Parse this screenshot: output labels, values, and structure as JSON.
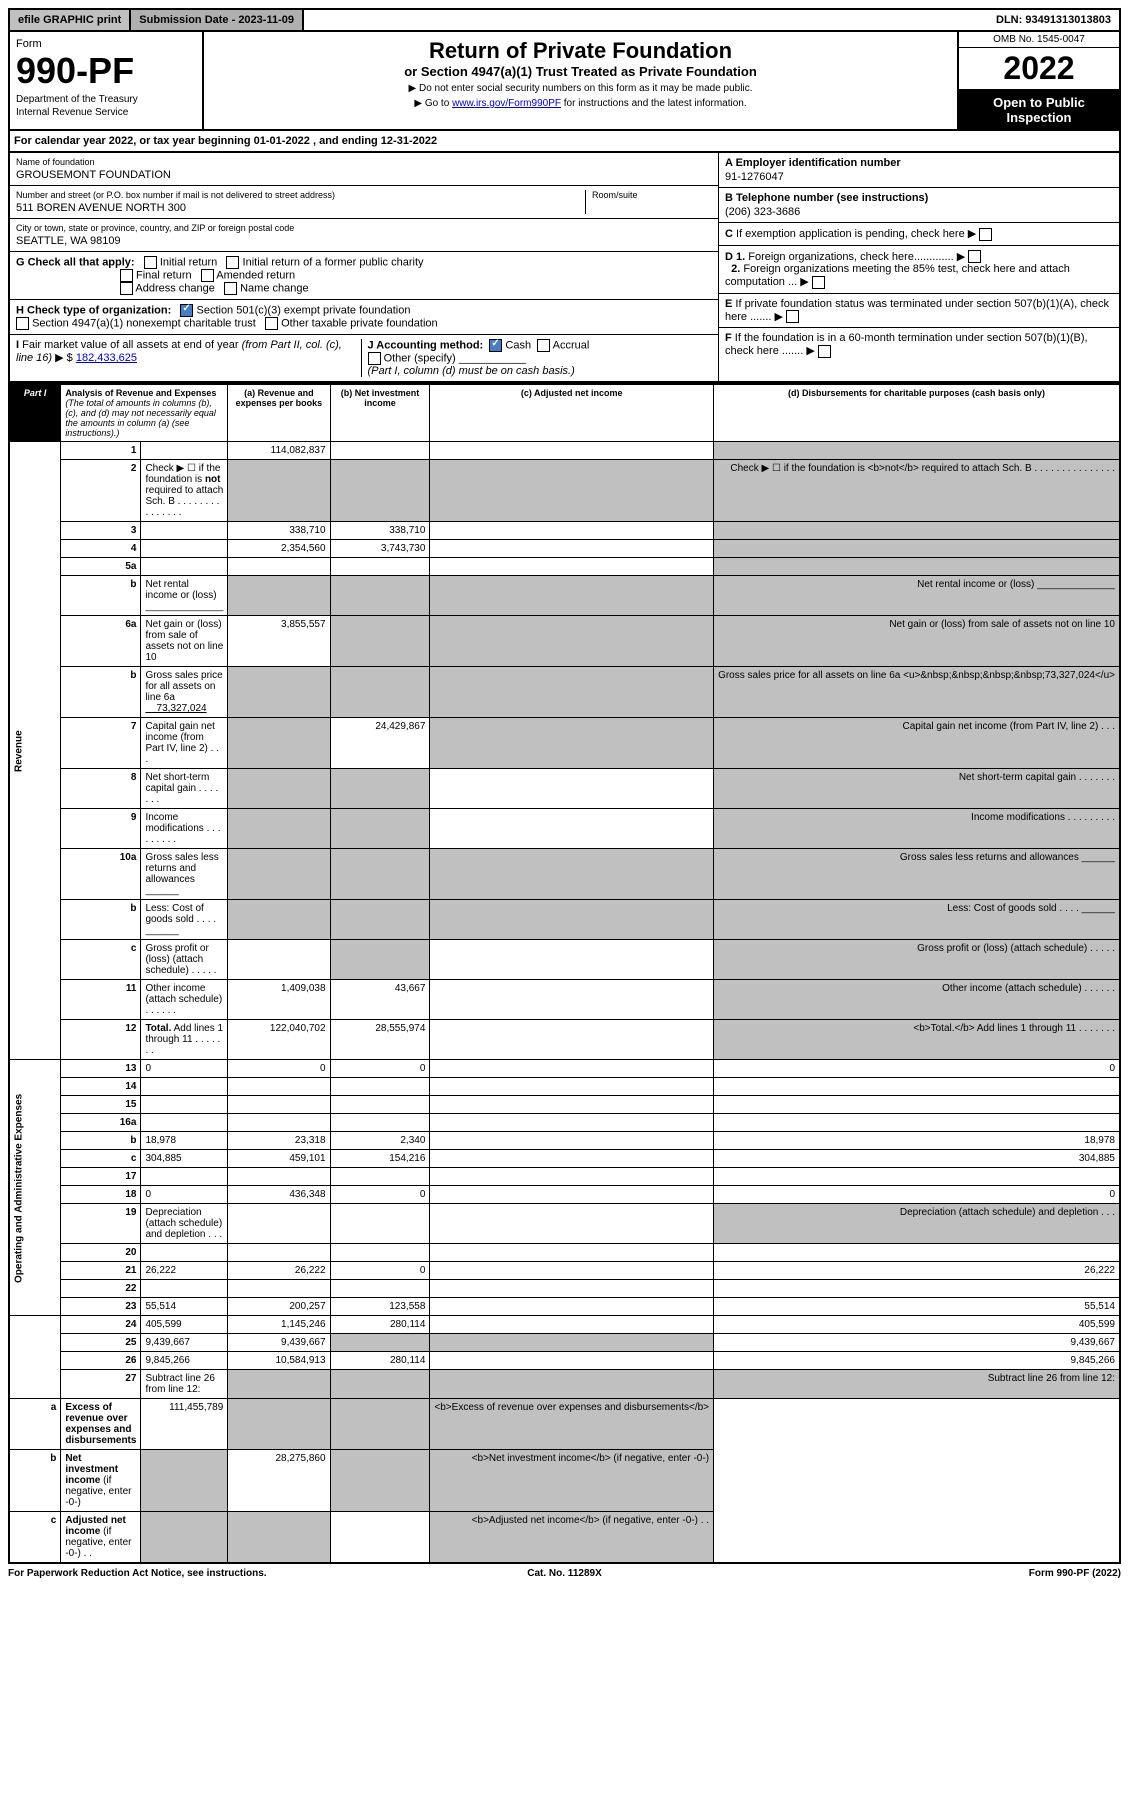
{
  "top": {
    "efile": "efile GRAPHIC print",
    "submission": "Submission Date - 2023-11-09",
    "dln": "DLN: 93491313013803"
  },
  "header": {
    "form_label": "Form",
    "form_no": "990-PF",
    "dept": "Department of the Treasury",
    "irs": "Internal Revenue Service",
    "title": "Return of Private Foundation",
    "subtitle": "or Section 4947(a)(1) Trust Treated as Private Foundation",
    "notice1": "▶ Do not enter social security numbers on this form as it may be made public.",
    "notice2": "▶ Go to ",
    "link": "www.irs.gov/Form990PF",
    "notice2b": " for instructions and the latest information.",
    "omb": "OMB No. 1545-0047",
    "year": "2022",
    "inspection": "Open to Public Inspection"
  },
  "calyear": "For calendar year 2022, or tax year beginning 01-01-2022                           , and ending 12-31-2022",
  "id": {
    "name_lbl": "Name of foundation",
    "name": "GROUSEMONT FOUNDATION",
    "addr_lbl": "Number and street (or P.O. box number if mail is not delivered to street address)",
    "addr": "511 BOREN AVENUE NORTH 300",
    "room_lbl": "Room/suite",
    "city_lbl": "City or town, state or province, country, and ZIP or foreign postal code",
    "city": "SEATTLE, WA  98109",
    "ein_lbl": "A Employer identification number",
    "ein": "91-1276047",
    "tel_lbl": "B Telephone number (see instructions)",
    "tel": "(206) 323-3686",
    "c": "C If exemption application is pending, check here ▶",
    "d1": "D 1. Foreign organizations, check here.............  ▶",
    "d2": "2. Foreign organizations meeting the 85% test, check here and attach computation ...  ▶",
    "e": "E  If private foundation status was terminated under section 507(b)(1)(A), check here .......  ▶",
    "f": "F  If the foundation is in a 60-month termination under section 507(b)(1)(B), check here .......  ▶"
  },
  "g": {
    "lbl": "G Check all that apply:",
    "i1": "Initial return",
    "i2": "Initial return of a former public charity",
    "i3": "Final return",
    "i4": "Amended return",
    "i5": "Address change",
    "i6": "Name change"
  },
  "h": {
    "lbl": "H Check type of organization:",
    "h1": "Section 501(c)(3) exempt private foundation",
    "h2": "Section 4947(a)(1) nonexempt charitable trust",
    "h3": "Other taxable private foundation"
  },
  "i": {
    "lbl": "I Fair market value of all assets at end of year (from Part II, col. (c), line 16) ▶ $",
    "val": "182,433,625"
  },
  "j": {
    "lbl": "J Accounting method:",
    "c": "Cash",
    "a": "Accrual",
    "o": "Other (specify)",
    "note": "(Part I, column (d) must be on cash basis.)"
  },
  "part1": {
    "tag": "Part I",
    "title": "Analysis of Revenue and Expenses",
    "note": "(The total of amounts in columns (b), (c), and (d) may not necessarily equal the amounts in column (a) (see instructions).)",
    "cols": {
      "a": "(a)   Revenue and expenses per books",
      "b": "(b)   Net investment income",
      "c": "(c)   Adjusted net income",
      "d": "(d)   Disbursements for charitable purposes (cash basis only)"
    }
  },
  "vlabels": {
    "rev": "Revenue",
    "exp": "Operating and Administrative Expenses"
  },
  "rows": [
    {
      "n": "1",
      "d": "",
      "a": "114,082,837",
      "b": "",
      "c": "",
      "dgrey": true
    },
    {
      "n": "2",
      "d": "Check ▶ ☐ if the foundation is <b>not</b> required to attach Sch. B  .  .  .  .  .  .  .  .  .  .  .  .  .  .  .",
      "agrey": true,
      "bgrey": true,
      "cgrey": true,
      "dgrey": true
    },
    {
      "n": "3",
      "d": "",
      "a": "338,710",
      "b": "338,710",
      "c": "",
      "dgrey": true
    },
    {
      "n": "4",
      "d": "",
      "a": "2,354,560",
      "b": "3,743,730",
      "c": "",
      "dgrey": true
    },
    {
      "n": "5a",
      "d": "",
      "a": "",
      "b": "",
      "c": "",
      "dgrey": true
    },
    {
      "n": "b",
      "d": "Net rental income or (loss) ______________",
      "agrey": true,
      "bgrey": true,
      "cgrey": true,
      "dgrey": true
    },
    {
      "n": "6a",
      "d": "Net gain or (loss) from sale of assets not on line 10",
      "a": "3,855,557",
      "bgrey": true,
      "cgrey": true,
      "dgrey": true
    },
    {
      "n": "b",
      "d": "Gross sales price for all assets on line 6a <u>&nbsp;&nbsp;&nbsp;&nbsp;73,327,024</u>",
      "agrey": true,
      "bgrey": true,
      "cgrey": true,
      "dgrey": true
    },
    {
      "n": "7",
      "d": "Capital gain net income (from Part IV, line 2)  .  .  .",
      "agrey": true,
      "b": "24,429,867",
      "cgrey": true,
      "dgrey": true
    },
    {
      "n": "8",
      "d": "Net short-term capital gain  .  .  .  .  .  .  .",
      "agrey": true,
      "bgrey": true,
      "c": "",
      "dgrey": true
    },
    {
      "n": "9",
      "d": "Income modifications  .  .  .  .  .  .  .  .  .",
      "agrey": true,
      "bgrey": true,
      "c": "",
      "dgrey": true
    },
    {
      "n": "10a",
      "d": "Gross sales less returns and allowances ______",
      "agrey": true,
      "bgrey": true,
      "cgrey": true,
      "dgrey": true
    },
    {
      "n": "b",
      "d": "Less: Cost of goods sold  .  .  .  . ______",
      "agrey": true,
      "bgrey": true,
      "cgrey": true,
      "dgrey": true
    },
    {
      "n": "c",
      "d": "Gross profit or (loss) (attach schedule)  .  .  .  .  .",
      "a": "",
      "bgrey": true,
      "c": "",
      "dgrey": true
    },
    {
      "n": "11",
      "d": "Other income (attach schedule)  .  .  .  .  .  .",
      "a": "1,409,038",
      "b": "43,667",
      "c": "",
      "dgrey": true
    },
    {
      "n": "12",
      "d": "<b>Total.</b> Add lines 1 through 11  .  .  .  .  .  .  .",
      "a": "122,040,702",
      "b": "28,555,974",
      "c": "",
      "dgrey": true,
      "bold": true
    },
    {
      "n": "13",
      "d": "0",
      "a": "0",
      "b": "0",
      "c": "",
      "sec": "exp"
    },
    {
      "n": "14",
      "d": "",
      "a": "",
      "b": "",
      "c": ""
    },
    {
      "n": "15",
      "d": "",
      "a": "",
      "b": "",
      "c": ""
    },
    {
      "n": "16a",
      "d": "",
      "a": "",
      "b": "",
      "c": ""
    },
    {
      "n": "b",
      "d": "18,978",
      "a": "23,318",
      "b": "2,340",
      "c": ""
    },
    {
      "n": "c",
      "d": "304,885",
      "a": "459,101",
      "b": "154,216",
      "c": ""
    },
    {
      "n": "17",
      "d": "",
      "a": "",
      "b": "",
      "c": ""
    },
    {
      "n": "18",
      "d": "0",
      "a": "436,348",
      "b": "0",
      "c": ""
    },
    {
      "n": "19",
      "d": "Depreciation (attach schedule) and depletion  .  .  .",
      "a": "",
      "b": "",
      "c": "",
      "dgrey": true
    },
    {
      "n": "20",
      "d": "",
      "a": "",
      "b": "",
      "c": ""
    },
    {
      "n": "21",
      "d": "26,222",
      "a": "26,222",
      "b": "0",
      "c": ""
    },
    {
      "n": "22",
      "d": "",
      "a": "",
      "b": "",
      "c": ""
    },
    {
      "n": "23",
      "d": "55,514",
      "a": "200,257",
      "b": "123,558",
      "c": ""
    },
    {
      "n": "24",
      "d": "405,599",
      "a": "1,145,246",
      "b": "280,114",
      "c": "",
      "bold": true
    },
    {
      "n": "25",
      "d": "9,439,667",
      "a": "9,439,667",
      "bgrey": true,
      "cgrey": true
    },
    {
      "n": "26",
      "d": "9,845,266",
      "a": "10,584,913",
      "b": "280,114",
      "c": "",
      "bold": true
    },
    {
      "n": "27",
      "d": "Subtract line 26 from line 12:",
      "agrey": true,
      "bgrey": true,
      "cgrey": true,
      "dgrey": true,
      "sec": "last"
    },
    {
      "n": "a",
      "d": "<b>Excess of revenue over expenses and disbursements</b>",
      "a": "111,455,789",
      "bgrey": true,
      "cgrey": true,
      "dgrey": true
    },
    {
      "n": "b",
      "d": "<b>Net investment income</b> (if negative, enter -0-)",
      "agrey": true,
      "b": "28,275,860",
      "cgrey": true,
      "dgrey": true
    },
    {
      "n": "c",
      "d": "<b>Adjusted net income</b> (if negative, enter -0-)  .  .",
      "agrey": true,
      "bgrey": true,
      "c": "",
      "dgrey": true
    }
  ],
  "footer": {
    "l": "For Paperwork Reduction Act Notice, see instructions.",
    "c": "Cat. No. 11289X",
    "r": "Form 990-PF (2022)"
  }
}
